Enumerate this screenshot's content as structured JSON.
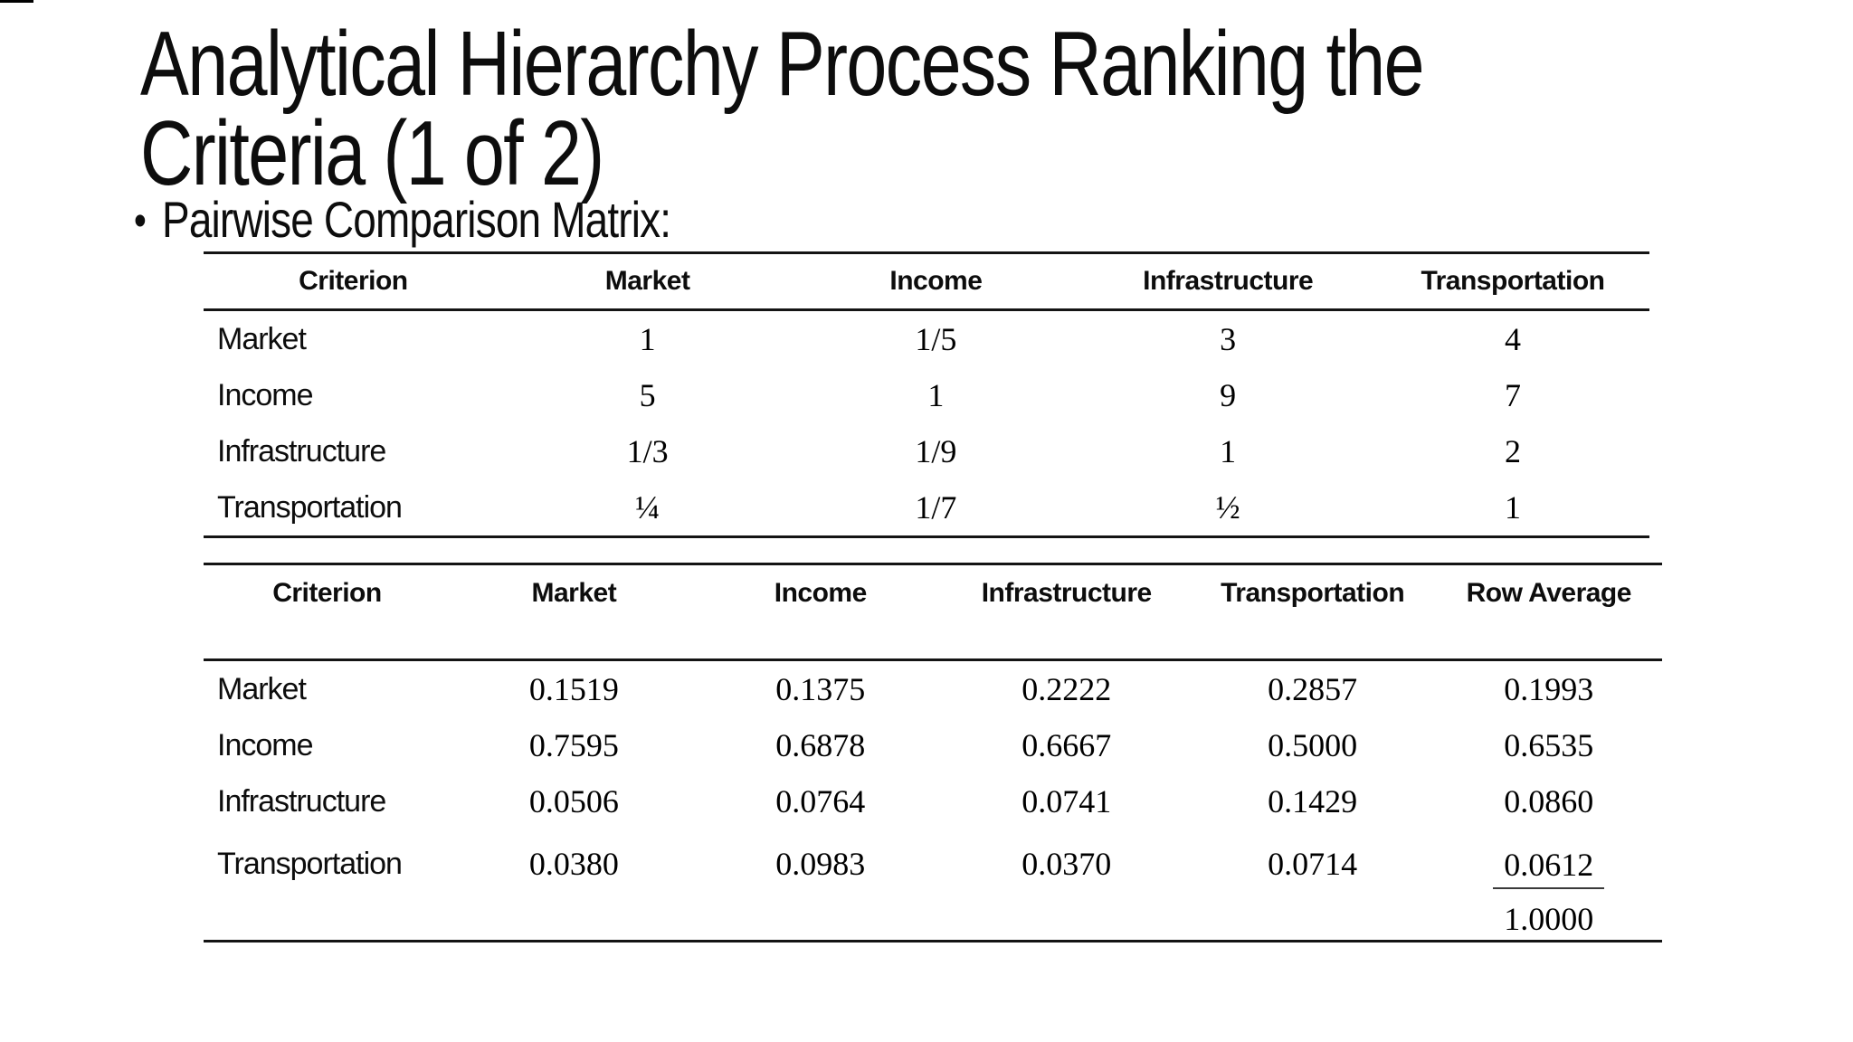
{
  "colors": {
    "background": "#ffffff",
    "text": "#0d0d0d",
    "rules": "#141414"
  },
  "slide": {
    "title_lines": [
      "Analytical Hierarchy Process Ranking the",
      "Criteria (1 of 2)"
    ],
    "bullet_glyph": "•",
    "bullet_text": "Pairwise Comparison Matrix:"
  },
  "pairwise_table": {
    "headers": [
      "Criterion",
      "Market",
      "Income",
      "Infrastructure",
      "Transportation"
    ],
    "rows": [
      {
        "label": "Market",
        "values": [
          "1",
          "1/5",
          "3",
          "4"
        ]
      },
      {
        "label": "Income",
        "values": [
          "5",
          "1",
          "9",
          "7"
        ]
      },
      {
        "label": "Infrastructure",
        "values": [
          "1/3",
          "1/9",
          "1",
          "2"
        ]
      },
      {
        "label": "Transportation",
        "values": [
          "¼",
          "1/7",
          "½",
          "1"
        ]
      }
    ]
  },
  "normalized_table": {
    "headers": [
      "Criterion",
      "Market",
      "Income",
      "Infrastructure",
      "Transportation",
      "Row Average"
    ],
    "rows": [
      {
        "label": "Market",
        "values": [
          "0.1519",
          "0.1375",
          "0.2222",
          "0.2857",
          "0.1993"
        ]
      },
      {
        "label": "Income",
        "values": [
          "0.7595",
          "0.6878",
          "0.6667",
          "0.5000",
          "0.6535"
        ]
      },
      {
        "label": "Infrastructure",
        "values": [
          "0.0506",
          "0.0764",
          "0.0741",
          "0.1429",
          "0.0860"
        ]
      },
      {
        "label": "Transportation",
        "values": [
          "0.0380",
          "0.0983",
          "0.0370",
          "0.0714",
          "0.0612"
        ]
      }
    ],
    "column_total": "1.0000"
  }
}
